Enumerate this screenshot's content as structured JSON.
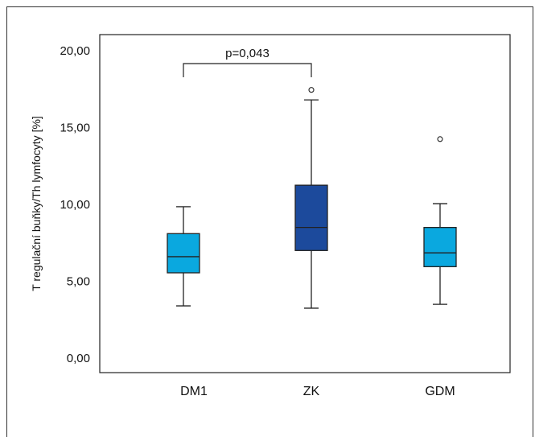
{
  "chart_data": {
    "type": "box",
    "ylabel": "T regulační buňky/Th lymfocyty [%]",
    "ylim": [
      0,
      20
    ],
    "yticks": [
      "0,00",
      "5,00",
      "10,00",
      "15,00",
      "20,00"
    ],
    "categories": [
      "DM1",
      "ZK",
      "GDM"
    ],
    "boxes": [
      {
        "name": "DM1",
        "min": 3.4,
        "q1": 5.55,
        "median": 6.6,
        "q3": 8.1,
        "max": 9.85,
        "outliers": [],
        "color": "#0aa8df"
      },
      {
        "name": "ZK",
        "min": 3.25,
        "q1": 7.0,
        "median": 8.5,
        "q3": 11.25,
        "max": 16.8,
        "outliers": [
          17.45
        ],
        "color": "#1c4a9c"
      },
      {
        "name": "GDM",
        "min": 3.5,
        "q1": 5.95,
        "median": 6.85,
        "q3": 8.5,
        "max": 10.05,
        "outliers": [
          14.25
        ],
        "color": "#0aa8df"
      }
    ],
    "annotation": {
      "text": "p=0,043",
      "from": "DM1",
      "to": "ZK"
    }
  }
}
